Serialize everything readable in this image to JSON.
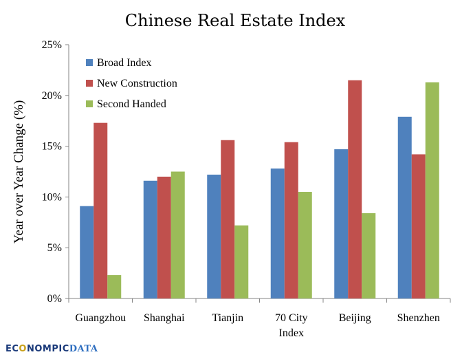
{
  "colors": {
    "broad": "#4f81bd",
    "new": "#c0504d",
    "second": "#9bbb59"
  },
  "logo": {
    "part1": "EC",
    "part2": "O",
    "part3": "NOMPIC",
    "part4": "DATA"
  },
  "chart_data": {
    "type": "bar",
    "title": "Chinese Real Estate Index",
    "xlabel": "",
    "ylabel": "Year over Year Change (%)",
    "ylim": [
      0,
      25
    ],
    "yticks": [
      "0%",
      "5%",
      "10%",
      "15%",
      "20%",
      "25%"
    ],
    "categories": [
      "Guangzhou",
      "Shanghai",
      "Tianjin",
      "70 City Index",
      "Beijing",
      "Shenzhen"
    ],
    "category_lines": [
      [
        "Guangzhou"
      ],
      [
        "Shanghai"
      ],
      [
        "Tianjin"
      ],
      [
        "70 City",
        "Index"
      ],
      [
        "Beijing"
      ],
      [
        "Shenzhen"
      ]
    ],
    "series": [
      {
        "name": "Broad Index",
        "color": "#4f81bd",
        "values": [
          9.1,
          11.6,
          12.2,
          12.8,
          14.7,
          17.9
        ]
      },
      {
        "name": "New Construction",
        "color": "#c0504d",
        "values": [
          17.3,
          12.0,
          15.6,
          15.4,
          21.5,
          14.2
        ]
      },
      {
        "name": "Second Handed",
        "color": "#9bbb59",
        "values": [
          2.3,
          12.5,
          7.2,
          10.5,
          8.4,
          21.3
        ]
      }
    ],
    "grid": false,
    "legend_position": "top-left"
  }
}
